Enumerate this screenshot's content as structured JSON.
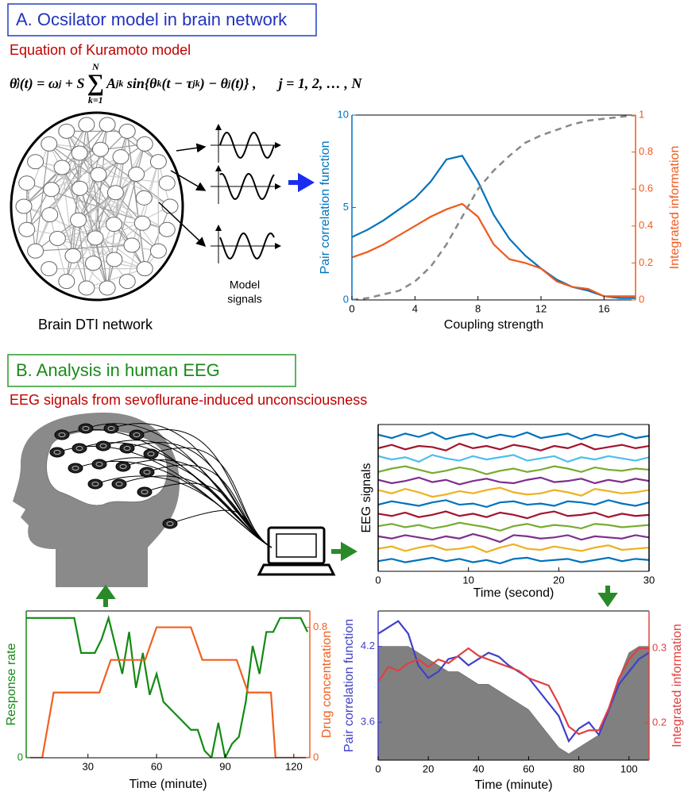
{
  "panel_a": {
    "title": "A. Ocsilator model in brain network",
    "subtitle": "Equation of Kuramoto model",
    "equation": [
      "θ̇",
      "j",
      "(t) = ω",
      "j",
      " + S",
      "∑",
      "k=1",
      "N",
      "A",
      "jk",
      " sin{θ",
      "k",
      "(t − τ",
      "jk",
      ") − θ",
      "j",
      "(t)} ,",
      "j = 1, 2, … , N"
    ],
    "brain_label": "Brain DTI network",
    "signals_label": [
      "Model",
      "signals"
    ]
  },
  "panel_b": {
    "title": "B. Analysis in human EEG",
    "subtitle": "EEG signals from sevoflurane-induced unconsciousness"
  },
  "chart_data": [
    {
      "type": "line",
      "xlabel": "Coupling strength",
      "ylabel": "Pair correlation function",
      "y2label": "Integrated information",
      "x": [
        0,
        1,
        2,
        3,
        4,
        5,
        6,
        7,
        8,
        9,
        10,
        11,
        12,
        13,
        14,
        15,
        16,
        17,
        18
      ],
      "xlim": [
        0,
        18
      ],
      "xticks": [
        0,
        4,
        8,
        12,
        16
      ],
      "ylim": [
        0,
        10
      ],
      "yticks": [
        0,
        5,
        10
      ],
      "y2lim": [
        0,
        1
      ],
      "y2ticks": [
        0,
        0.2,
        0.4,
        0.6,
        0.8,
        1
      ],
      "series": [
        {
          "name": "Pair correlation function",
          "color": "#0072bd",
          "axis": "y",
          "values": [
            3.4,
            3.8,
            4.3,
            4.9,
            5.5,
            6.4,
            7.6,
            7.8,
            6.4,
            4.6,
            3.3,
            2.4,
            1.7,
            1.1,
            0.7,
            0.5,
            0.2,
            0.1,
            0.1
          ]
        },
        {
          "name": "Integrated information",
          "color": "#f05a1e",
          "axis": "y2",
          "values": [
            0.23,
            0.26,
            0.3,
            0.35,
            0.4,
            0.45,
            0.49,
            0.52,
            0.45,
            0.3,
            0.22,
            0.2,
            0.17,
            0.1,
            0.07,
            0.06,
            0.02,
            0.02,
            0.02
          ]
        },
        {
          "color": "#888888",
          "axis": "y2",
          "dash": true,
          "values": [
            0,
            0.01,
            0.03,
            0.05,
            0.1,
            0.18,
            0.3,
            0.45,
            0.6,
            0.7,
            0.78,
            0.85,
            0.89,
            0.92,
            0.95,
            0.97,
            0.98,
            0.99,
            1.0
          ]
        }
      ]
    },
    {
      "type": "line",
      "xlabel": "Time (second)",
      "ylabel": "EEG signals",
      "x": [
        0,
        1.5,
        3,
        4.5,
        6,
        7.5,
        9,
        10.5,
        12,
        13.5,
        15,
        16.5,
        18,
        19.5,
        21,
        22.5,
        24,
        25.5,
        27,
        28.5,
        30
      ],
      "xlim": [
        0,
        30
      ],
      "xticks": [
        0,
        10,
        20,
        30
      ],
      "ylim": [
        0,
        13
      ],
      "series": [
        {
          "color": "#0072bd",
          "values": [
            12.1,
            11.8,
            12.2,
            11.9,
            12.3,
            11.7,
            12.0,
            12.2,
            11.8,
            12.1,
            11.9,
            12.3,
            11.8,
            12.0,
            12.2,
            11.7,
            12.1,
            11.9,
            12.2,
            11.8,
            12.0
          ]
        },
        {
          "color": "#a2142f",
          "values": [
            10.9,
            11.2,
            10.8,
            11.1,
            11.0,
            10.7,
            11.3,
            10.9,
            11.1,
            10.8,
            11.2,
            11.0,
            10.7,
            11.1,
            10.9,
            11.3,
            10.8,
            11.0,
            11.2,
            10.9,
            11.1
          ]
        },
        {
          "color": "#4dbeee",
          "values": [
            10.2,
            9.9,
            10.1,
            9.7,
            10.3,
            10.0,
            9.8,
            10.2,
            9.9,
            10.1,
            10.3,
            9.8,
            10.0,
            10.2,
            9.7,
            10.1,
            9.9,
            10.2,
            10.0,
            9.8,
            10.1
          ]
        },
        {
          "color": "#77ac30",
          "values": [
            8.8,
            9.1,
            9.3,
            9.0,
            8.7,
            8.9,
            9.2,
            9.0,
            8.6,
            8.9,
            9.1,
            8.8,
            9.0,
            9.3,
            9.1,
            8.8,
            9.2,
            9.0,
            8.9,
            9.1,
            9.0
          ]
        },
        {
          "color": "#7e2f8e",
          "values": [
            8.1,
            7.8,
            8.0,
            8.3,
            7.9,
            8.1,
            7.7,
            8.0,
            8.2,
            7.9,
            7.8,
            8.1,
            8.3,
            7.9,
            8.0,
            8.2,
            7.8,
            8.1,
            7.9,
            8.2,
            8.0
          ]
        },
        {
          "color": "#edb120",
          "values": [
            7.2,
            6.9,
            7.3,
            7.0,
            6.6,
            6.8,
            7.1,
            6.9,
            7.2,
            7.4,
            7.0,
            6.8,
            6.9,
            7.2,
            7.0,
            6.7,
            7.3,
            7.1,
            6.9,
            7.0,
            7.2
          ]
        },
        {
          "color": "#0072bd",
          "values": [
            5.9,
            6.2,
            6.0,
            5.8,
            6.1,
            6.3,
            5.9,
            6.0,
            5.7,
            6.1,
            6.2,
            5.9,
            6.0,
            5.8,
            6.2,
            6.1,
            5.9,
            6.3,
            6.0,
            5.8,
            6.1
          ]
        },
        {
          "color": "#a2142f",
          "values": [
            5.1,
            4.9,
            5.2,
            4.8,
            5.0,
            5.3,
            4.9,
            5.1,
            4.8,
            5.2,
            5.0,
            4.7,
            5.1,
            5.3,
            4.9,
            5.0,
            5.2,
            4.8,
            5.1,
            4.9,
            5.0
          ]
        },
        {
          "color": "#77ac30",
          "values": [
            4.0,
            4.2,
            3.9,
            4.1,
            3.8,
            4.0,
            4.3,
            4.1,
            3.9,
            3.6,
            4.0,
            4.2,
            3.9,
            4.1,
            4.0,
            3.8,
            4.2,
            4.1,
            3.9,
            4.0,
            4.1
          ]
        },
        {
          "color": "#7e2f8e",
          "values": [
            3.1,
            2.9,
            3.2,
            3.0,
            2.8,
            3.1,
            2.9,
            3.3,
            3.0,
            2.6,
            3.2,
            3.1,
            2.9,
            3.0,
            3.2,
            2.8,
            3.1,
            3.0,
            2.9,
            3.2,
            3.0
          ]
        },
        {
          "color": "#edb120",
          "values": [
            2.0,
            2.2,
            1.8,
            2.1,
            2.3,
            1.9,
            2.0,
            2.2,
            1.7,
            2.1,
            2.4,
            2.0,
            1.9,
            2.2,
            2.0,
            1.8,
            2.1,
            2.3,
            1.9,
            2.0,
            2.1
          ]
        },
        {
          "color": "#0072bd",
          "values": [
            0.9,
            1.1,
            0.8,
            1.0,
            1.2,
            0.9,
            1.1,
            0.8,
            1.0,
            0.7,
            1.1,
            1.2,
            0.9,
            1.0,
            1.1,
            0.8,
            1.0,
            1.2,
            0.9,
            1.1,
            1.0
          ]
        }
      ]
    },
    {
      "type": "line",
      "xlabel": "Time (minute)",
      "ylabel": "Response rate",
      "y2label": "Drug concentration",
      "xlim": [
        3,
        127
      ],
      "xticks": [
        30,
        60,
        90,
        120
      ],
      "ylim": [
        0,
        1.05
      ],
      "yticks": [
        0
      ],
      "y2lim": [
        0,
        0.9
      ],
      "y2ticks": [
        0,
        0.8
      ],
      "series": [
        {
          "name": "Response rate",
          "color": "#138a13",
          "axis": "y",
          "x": [
            3,
            6,
            9,
            12,
            15,
            18,
            21,
            24,
            27,
            30,
            33,
            36,
            39,
            42,
            45,
            48,
            51,
            54,
            57,
            60,
            63,
            66,
            69,
            72,
            75,
            78,
            81,
            84,
            87,
            90,
            93,
            96,
            99,
            102,
            105,
            108,
            111,
            114,
            117,
            120,
            123,
            126
          ],
          "values": [
            1.0,
            1.0,
            1.0,
            1.0,
            1.0,
            1.0,
            1.0,
            1.0,
            0.75,
            0.75,
            0.75,
            0.85,
            1.0,
            0.8,
            0.6,
            0.9,
            0.5,
            0.75,
            0.45,
            0.6,
            0.4,
            0.35,
            0.3,
            0.25,
            0.2,
            0.2,
            0.05,
            0.0,
            0.25,
            0.0,
            0.1,
            0.15,
            0.4,
            0.8,
            0.6,
            0.9,
            0.9,
            1.0,
            1.0,
            1.0,
            1.0,
            0.9
          ]
        },
        {
          "name": "Drug concentration",
          "color": "#f06020",
          "axis": "y2",
          "x": [
            3,
            10,
            15,
            35,
            40,
            55,
            60,
            75,
            80,
            95,
            100,
            110,
            112,
            127
          ],
          "values": [
            0,
            0,
            0.4,
            0.4,
            0.6,
            0.6,
            0.8,
            0.8,
            0.6,
            0.6,
            0.4,
            0.4,
            0,
            0
          ]
        }
      ]
    },
    {
      "type": "line",
      "xlabel": "Time (minute)",
      "ylabel": "Pair correlation function",
      "y2label": "Integrated information",
      "x": [
        0,
        4,
        8,
        12,
        16,
        20,
        24,
        28,
        32,
        36,
        40,
        44,
        48,
        52,
        56,
        60,
        64,
        68,
        72,
        76,
        80,
        84,
        88,
        92,
        96,
        100,
        104,
        108
      ],
      "xlim": [
        0,
        108
      ],
      "xticks": [
        0,
        20,
        40,
        60,
        80,
        100
      ],
      "ylim": [
        3.3,
        4.48
      ],
      "yticks": [
        3.6,
        4.2
      ],
      "y2lim": [
        0.15,
        0.35
      ],
      "y2ticks": [
        0.2,
        0.3
      ],
      "series": [
        {
          "color": "#808080",
          "axis": "y",
          "area": true,
          "values": [
            4.2,
            4.2,
            4.2,
            4.2,
            4.15,
            4.1,
            4.05,
            4.0,
            4.0,
            3.95,
            3.9,
            3.9,
            3.85,
            3.8,
            3.75,
            3.7,
            3.6,
            3.5,
            3.4,
            3.35,
            3.4,
            3.45,
            3.5,
            3.7,
            3.95,
            4.15,
            4.2,
            4.2
          ]
        },
        {
          "name": "Pair correlation function",
          "color": "#4040c8",
          "axis": "y",
          "values": [
            4.3,
            4.35,
            4.4,
            4.3,
            4.05,
            3.95,
            4.0,
            4.1,
            4.12,
            4.05,
            4.1,
            4.15,
            4.12,
            4.05,
            4.0,
            3.95,
            3.85,
            3.75,
            3.65,
            3.45,
            3.55,
            3.6,
            3.5,
            3.7,
            3.9,
            4.0,
            4.1,
            4.15
          ]
        },
        {
          "name": "Integrated information",
          "color": "#e04040",
          "axis": "y2",
          "values": [
            0.255,
            0.275,
            0.27,
            0.28,
            0.285,
            0.275,
            0.285,
            0.28,
            0.29,
            0.3,
            0.29,
            0.285,
            0.28,
            0.275,
            0.27,
            0.26,
            0.255,
            0.25,
            0.225,
            0.195,
            0.185,
            0.19,
            0.19,
            0.22,
            0.26,
            0.285,
            0.3,
            0.3
          ]
        }
      ]
    }
  ]
}
